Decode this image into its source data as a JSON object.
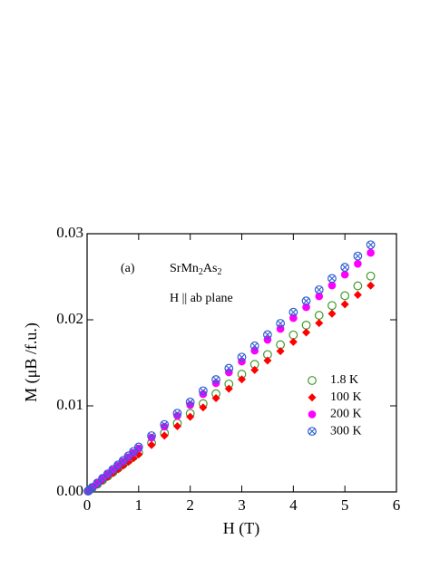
{
  "chart_data": {
    "type": "scatter",
    "xlabel": "H (T)",
    "ylabel": "M (μB /f.u.)",
    "annotations": [
      "(a)",
      "SrMn2As2",
      "H || ab plane"
    ],
    "xlim": [
      0,
      6
    ],
    "xticks": [
      0,
      1,
      2,
      3,
      4,
      5,
      6
    ],
    "ylim": [
      0,
      0.03
    ],
    "yticks": [
      {
        "value": 0,
        "label": "0.00"
      },
      0.01,
      0.02,
      0.03
    ],
    "x": [
      0.02,
      0.05,
      0.1,
      0.2,
      0.3,
      0.4,
      0.5,
      0.6,
      0.7,
      0.8,
      0.9,
      1,
      1.25,
      1.5,
      1.75,
      2,
      2.25,
      2.5,
      2.75,
      3,
      3.25,
      3.5,
      3.75,
      4,
      4.25,
      4.5,
      4.75,
      5,
      5.25,
      5.5
    ],
    "series": [
      {
        "name": "1.8 K",
        "color": "#3f9a2a",
        "marker": "open-circle",
        "values": [
          9e-05,
          0.00023,
          0.00046,
          0.00091,
          0.00137,
          0.00182,
          0.00228,
          0.00274,
          0.00319,
          0.00365,
          0.0041,
          0.00456,
          0.0057,
          0.00684,
          0.00798,
          0.00912,
          0.01026,
          0.0114,
          0.01254,
          0.01368,
          0.01482,
          0.01596,
          0.0171,
          0.01824,
          0.01938,
          0.02052,
          0.02166,
          0.0228,
          0.02394,
          0.02508
        ]
      },
      {
        "name": "100 K",
        "color": "#ff0000",
        "marker": "diamond",
        "values": [
          9e-05,
          0.00022,
          0.00044,
          0.00087,
          0.00131,
          0.00174,
          0.00218,
          0.00262,
          0.00305,
          0.00349,
          0.00392,
          0.00436,
          0.00545,
          0.00654,
          0.00763,
          0.00872,
          0.00981,
          0.0109,
          0.01199,
          0.01308,
          0.01417,
          0.01526,
          0.01635,
          0.01744,
          0.01853,
          0.01962,
          0.02071,
          0.0218,
          0.02289,
          0.02398
        ]
      },
      {
        "name": "200 K",
        "color": "#ff00ff",
        "marker": "filled-circle",
        "values": [
          0.0001,
          0.00025,
          0.00051,
          0.00101,
          0.00152,
          0.00202,
          0.00253,
          0.00303,
          0.00354,
          0.00404,
          0.00455,
          0.00505,
          0.00631,
          0.00758,
          0.00884,
          0.0101,
          0.01136,
          0.01263,
          0.01389,
          0.01515,
          0.01641,
          0.01768,
          0.01894,
          0.0202,
          0.02146,
          0.02273,
          0.02399,
          0.02525,
          0.02651,
          0.02778
        ]
      },
      {
        "name": "300 K",
        "color": "#2f5fd0",
        "marker": "crossed-circle",
        "values": [
          0.0001,
          0.00026,
          0.00052,
          0.00104,
          0.00157,
          0.00209,
          0.00261,
          0.00313,
          0.00365,
          0.00418,
          0.0047,
          0.00522,
          0.00653,
          0.00783,
          0.00914,
          0.01044,
          0.01175,
          0.01305,
          0.01436,
          0.01566,
          0.01697,
          0.01827,
          0.01958,
          0.02088,
          0.02219,
          0.02349,
          0.0248,
          0.0261,
          0.02741,
          0.02871
        ]
      }
    ]
  }
}
